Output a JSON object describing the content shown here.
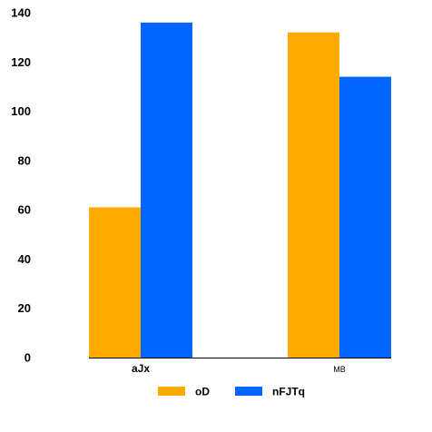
{
  "chart_data": {
    "type": "bar",
    "categories": [
      "aJx",
      "MB"
    ],
    "series": [
      {
        "name": "oD",
        "values": [
          61,
          132
        ],
        "color": "#FFAA00"
      },
      {
        "name": "nFJTq",
        "values": [
          136,
          114
        ],
        "color": "#0066FF"
      }
    ],
    "ylim": [
      0,
      140
    ],
    "yticks": [
      0,
      20,
      40,
      60,
      80,
      100,
      120,
      140
    ],
    "grid": false,
    "legend_position": "bottom-center",
    "title": "",
    "xlabel": "",
    "ylabel": ""
  }
}
